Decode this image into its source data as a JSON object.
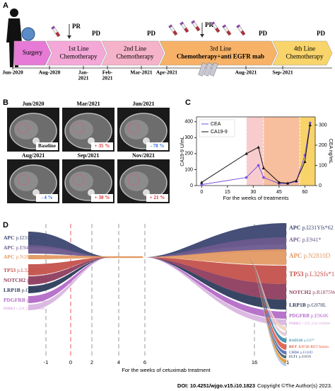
{
  "panel_labels": [
    "A",
    "B",
    "C",
    "D"
  ],
  "timeline": {
    "phases": [
      {
        "lines": [
          "Surgery"
        ]
      },
      {
        "lines": [
          "1st Line",
          "Chemotherapy"
        ]
      },
      {
        "lines": [
          "2nd Line",
          "Chemotherapy"
        ]
      },
      {
        "lines": [
          "3rd Line",
          "Chemotherapy+anti EGFR mab"
        ]
      },
      {
        "lines": [
          "4th Line",
          "Chemotherapy"
        ]
      }
    ],
    "dates": [
      {
        "lines": [
          "Jun-2020"
        ]
      },
      {
        "lines": [
          "Aug-2020"
        ]
      },
      {
        "lines": [
          "Jan-",
          "2021"
        ]
      },
      {
        "lines": [
          "Feb-",
          "2021"
        ]
      },
      {
        "lines": [
          "Mar-2021"
        ]
      },
      {
        "lines": [
          "Apr-2021"
        ]
      },
      {
        "lines": [
          "Aug-2021"
        ]
      },
      {
        "lines": [
          "Sep-2021"
        ]
      }
    ],
    "responses": [
      "PR",
      "PD",
      "PD",
      "PR",
      "PD",
      "PD"
    ]
  },
  "scans": [
    {
      "date": "Jun/2020",
      "change": "Baseline"
    },
    {
      "date": "Mar/2021",
      "change": "+ 35 %"
    },
    {
      "date": "Jun/2021",
      "change": "- 78 %"
    },
    {
      "date": "Aug/2021",
      "change": "- 4 %"
    },
    {
      "date": "Sep/2021",
      "change": "+ 30 %"
    },
    {
      "date": "Nov/2021",
      "change": "+ 21 %"
    }
  ],
  "chart_data": {
    "type": "line",
    "xlabel": "For the weeks of treatments",
    "ylabel": "CA19-9 U/mL",
    "y2label": "CEA ng/mL",
    "x": [
      0,
      26,
      33,
      36,
      45,
      50,
      55,
      60,
      63
    ],
    "series": [
      {
        "name": "CEA",
        "color": "#7b4fe0",
        "axis": "y2",
        "values": [
          5,
          40,
          100,
          40,
          10,
          10,
          20,
          150,
          310
        ]
      },
      {
        "name": "CA19-9",
        "color": "#111111",
        "values": [
          20,
          200,
          240,
          110,
          20,
          15,
          30,
          150,
          380
        ]
      }
    ],
    "xlim": [
      -3,
      66
    ],
    "xticks": [
      0,
      15,
      30,
      45,
      60
    ],
    "ylim": [
      0,
      430
    ],
    "yticks": [
      0,
      100,
      200,
      300,
      400
    ],
    "y2lim": [
      0,
      340
    ],
    "y2ticks": [
      0,
      100,
      200,
      300
    ],
    "legend": "upper left"
  },
  "fish": {
    "left_labels": [
      {
        "gene": "APC",
        "variant": "p.I231Yfs*62"
      },
      {
        "gene": "APC",
        "variant": "p.E941*"
      },
      {
        "gene": "APC",
        "variant": "p.N2810D"
      },
      {
        "gene": "TP53",
        "variant": "p.L32Sfs*11"
      },
      {
        "gene": "NOTCH2",
        "variant": "p.R1875W"
      },
      {
        "gene": "LRP1B",
        "variant": "p.G978L"
      },
      {
        "gene": "PDGFRB",
        "variant": "p.E964K"
      },
      {
        "gene": "PARK2",
        "variant": "c.529_534+2436del"
      }
    ],
    "right_labels": [
      {
        "gene": "APC",
        "variant": "p.I231Yfs*62"
      },
      {
        "gene": "APC",
        "variant": "p.E941*"
      },
      {
        "gene": "APC",
        "variant": "p.N2810D"
      },
      {
        "gene": "TP53",
        "variant": "p.L32Sfs*11"
      },
      {
        "gene": "NOTCH2",
        "variant": "p.R1875W"
      },
      {
        "gene": "LRP1B",
        "variant": "p.G978L"
      },
      {
        "gene": "PDGFRB",
        "variant": "p.E964K"
      },
      {
        "gene": "PARK2",
        "variant": "c.529_534+2436del"
      },
      {
        "gene": "RAD51B",
        "variant": "p.G67*"
      },
      {
        "gene": "RET",
        "variant": "KIF5B-RET fusion"
      },
      {
        "gene": "CHD4",
        "variant": "p.E160D"
      },
      {
        "gene": "FLT1",
        "variant": "p.S909N"
      }
    ],
    "xticks": [
      "-1",
      "0",
      "2",
      "4",
      "6",
      "16",
      "21"
    ],
    "xlabel": "For the weeks of cetuximab treatment"
  },
  "footer": {
    "doi": "DOI: 10.4251/wjgo.v15.i10.1823",
    "copyright": "Copyright ©The Author(s) 2023."
  }
}
